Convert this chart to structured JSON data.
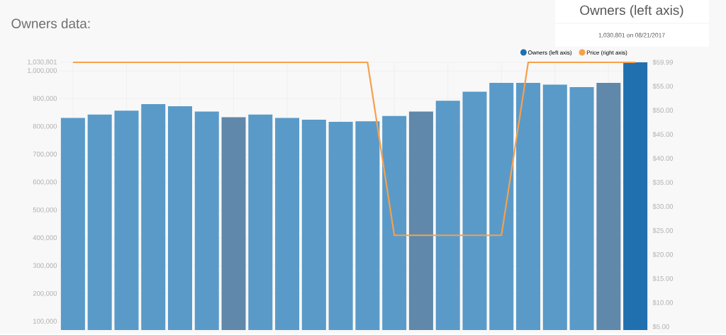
{
  "chart_data": {
    "type": "bar",
    "title": "Owners data:",
    "categories": [
      null,
      null,
      null,
      null,
      null,
      null,
      null,
      null,
      null,
      null,
      null,
      null,
      null,
      null,
      null,
      null,
      null,
      null,
      null,
      null,
      null,
      null
    ],
    "series": [
      {
        "name": "Owners (left axis)",
        "color": "#5a9ac8",
        "colors": [
          "#5a9ac8",
          "#5a9ac8",
          "#5a9ac8",
          "#5a9ac8",
          "#5a9ac8",
          "#5a9ac8",
          "#6088aa",
          "#5a9ac8",
          "#5a9ac8",
          "#5a9ac8",
          "#5a9ac8",
          "#5a9ac8",
          "#5a9ac8",
          "#6088aa",
          "#5a9ac8",
          "#5a9ac8",
          "#5a9ac8",
          "#5a9ac8",
          "#5a9ac8",
          "#5a9ac8",
          "#6088aa",
          "#2070b0"
        ],
        "values": [
          831000,
          843000,
          857000,
          881000,
          873000,
          854000,
          834000,
          843000,
          831000,
          825000,
          817000,
          819000,
          838000,
          854000,
          893000,
          925000,
          957000,
          957000,
          951000,
          942000,
          957000,
          1030801
        ]
      },
      {
        "name": "Price (right axis)",
        "type": "line",
        "axis": "y2",
        "color": "#f7a04c",
        "values": [
          59.99,
          59.99,
          59.99,
          59.99,
          59.99,
          59.99,
          59.99,
          59.99,
          59.99,
          59.99,
          59.99,
          59.99,
          24,
          24,
          24,
          24,
          24,
          59.99,
          59.99,
          59.99,
          59.99,
          59.99
        ]
      }
    ],
    "ylim": [
      70000,
      1030801
    ],
    "yticks": [
      {
        "value": 100000,
        "label": "100,000"
      },
      {
        "value": 200000,
        "label": "200,000"
      },
      {
        "value": 300000,
        "label": "300,000"
      },
      {
        "value": 400000,
        "label": "400,000"
      },
      {
        "value": 500000,
        "label": "500,000"
      },
      {
        "value": 600000,
        "label": "600,000"
      },
      {
        "value": 700000,
        "label": "700,000"
      },
      {
        "value": 800000,
        "label": "800,000"
      },
      {
        "value": 900000,
        "label": "900,000"
      },
      {
        "value": 1000000,
        "label": "1,000,000"
      },
      {
        "value": 1030801,
        "label": "1,030,801"
      }
    ],
    "y2lim": [
      4.3,
      59.99
    ],
    "y2ticks": [
      {
        "value": 5,
        "label": "$5.00"
      },
      {
        "value": 10,
        "label": "$10.00"
      },
      {
        "value": 15,
        "label": "$15.00"
      },
      {
        "value": 20,
        "label": "$20.00"
      },
      {
        "value": 25,
        "label": "$25.00"
      },
      {
        "value": 30,
        "label": "$30.00"
      },
      {
        "value": 35,
        "label": "$35.00"
      },
      {
        "value": 40,
        "label": "$40.00"
      },
      {
        "value": 45,
        "label": "$45.00"
      },
      {
        "value": 50,
        "label": "$50.00"
      },
      {
        "value": 55,
        "label": "$55.00"
      },
      {
        "value": 59.99,
        "label": "$59.99"
      }
    ],
    "grid": true,
    "legend": "top right",
    "annotations": [
      "Owners (left axis)",
      "1,030,801 on 08/21/2017"
    ]
  }
}
